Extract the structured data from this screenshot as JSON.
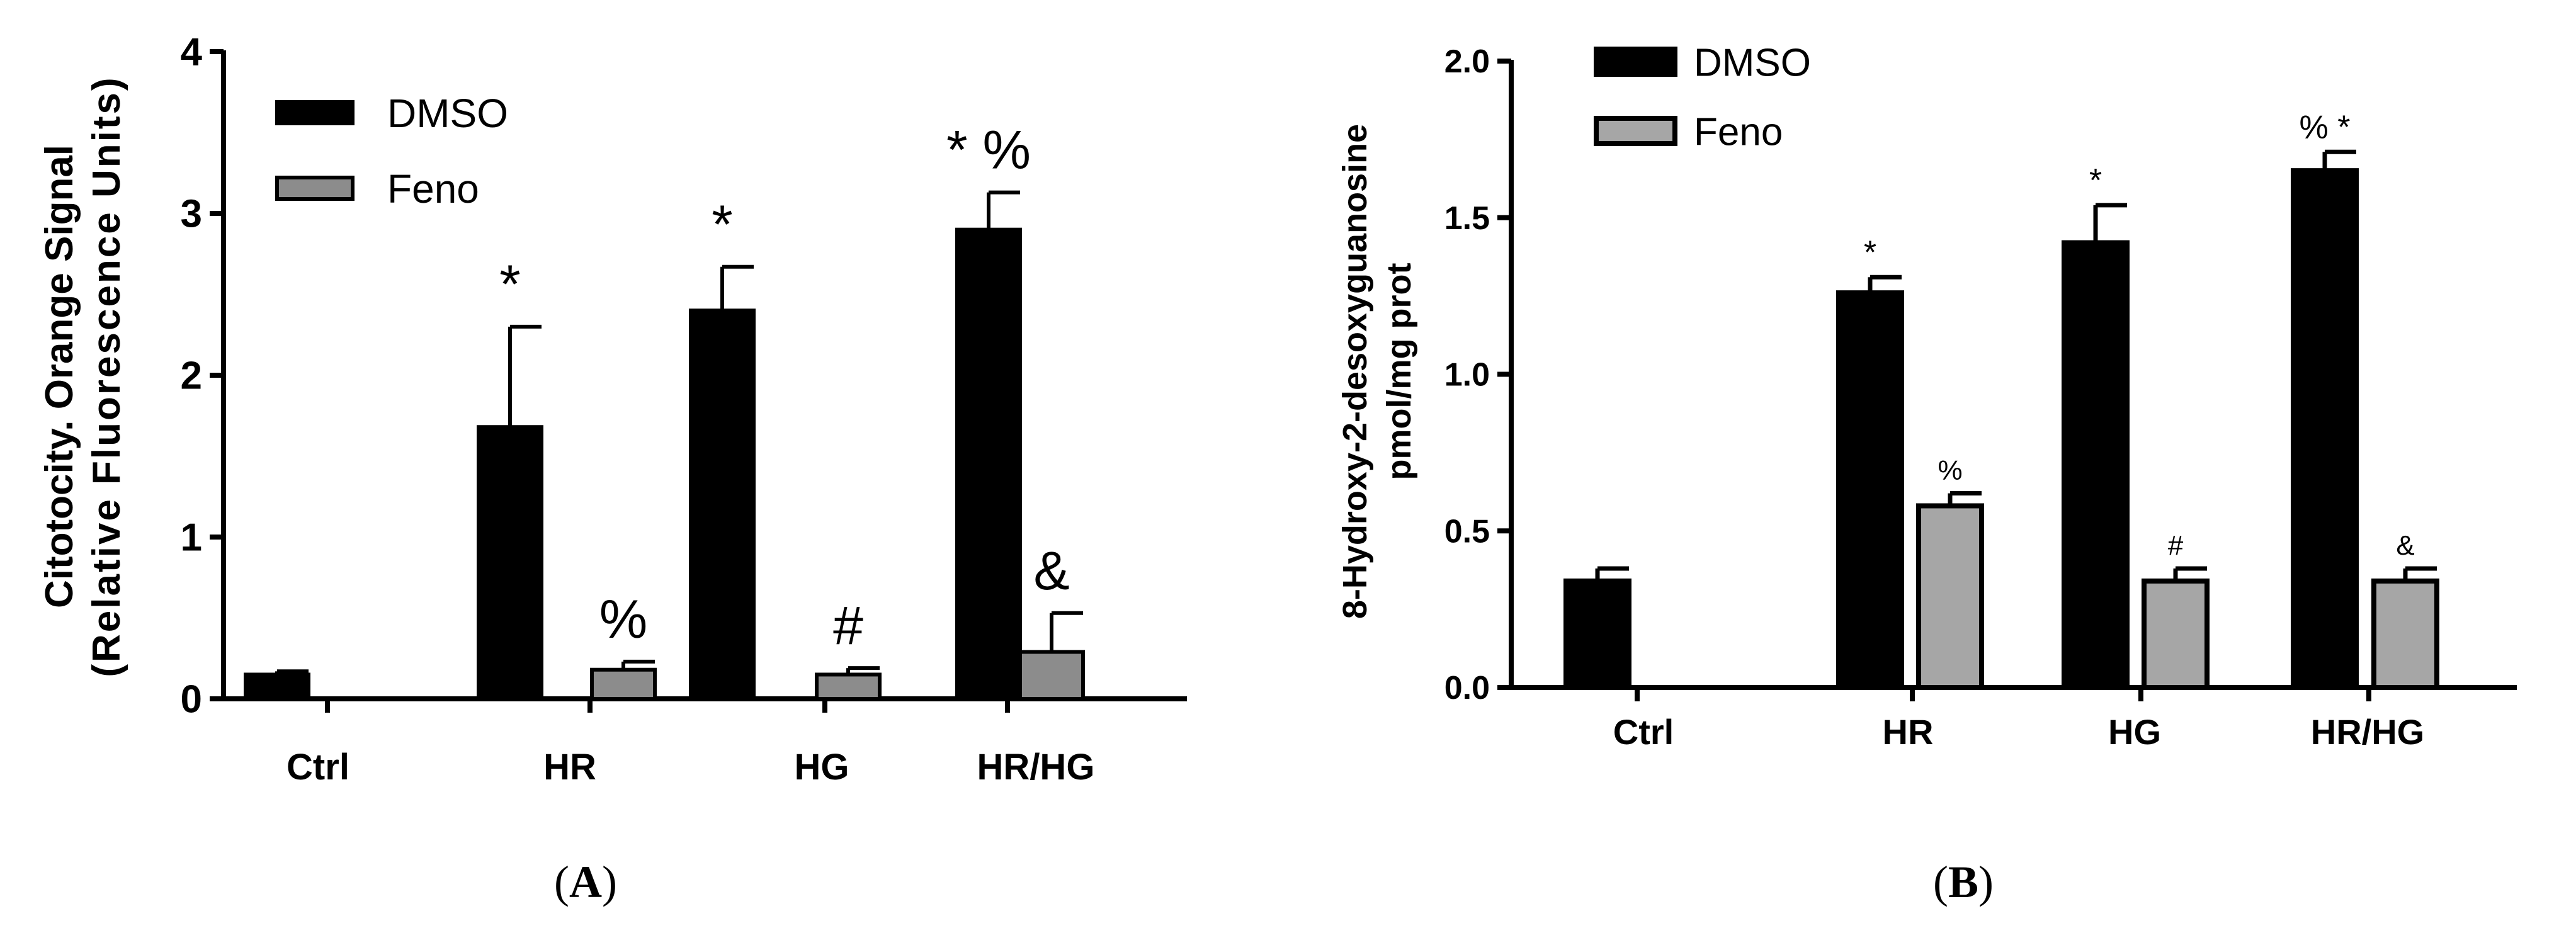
{
  "chart_data": [
    {
      "type": "bar",
      "panel_label": "(A)",
      "panel_label_parts": [
        "(",
        "A",
        ")"
      ],
      "ylabel_line1": "Citotocity. Orange Signal",
      "ylabel_line2": "(Relative Fluorescence Units)",
      "ylim": [
        0,
        4
      ],
      "yticks": [
        "0",
        "1",
        "2",
        "3",
        "4"
      ],
      "categories": [
        "Ctrl",
        "HR",
        "HG",
        "HR/HG"
      ],
      "legend": {
        "placement": "top-left",
        "entries": [
          "DMSO",
          "Feno"
        ]
      },
      "colors": {
        "DMSO": "#000000",
        "Feno": "#8c8c8c",
        "ctrl": "#8c8c8c"
      },
      "series": [
        {
          "name": "DMSO",
          "values": [
            0.15,
            1.68,
            2.4,
            2.9
          ],
          "errors": [
            0.02,
            0.62,
            0.27,
            0.23
          ],
          "annotations": [
            "",
            "*",
            "*",
            "* %"
          ]
        },
        {
          "name": "Feno",
          "values": [
            null,
            0.18,
            0.15,
            0.29
          ],
          "errors": [
            null,
            0.05,
            0.04,
            0.24
          ],
          "annotations": [
            "",
            "%",
            "#",
            "&"
          ]
        }
      ]
    },
    {
      "type": "bar",
      "panel_label": "(B)",
      "panel_label_parts": [
        "(",
        "B",
        ")"
      ],
      "ylabel_line1": "8-Hydroxy-2-desoxyguanosine",
      "ylabel_line2": "pmol/mg prot",
      "ylim": [
        0,
        2.0
      ],
      "yticks": [
        "0.0",
        "0.5",
        "1.0",
        "1.5",
        "2.0"
      ],
      "categories": [
        "Ctrl",
        "HR",
        "HG",
        "HR/HG"
      ],
      "legend": {
        "placement": "top-left",
        "entries": [
          "DMSO",
          "Feno"
        ]
      },
      "colors": {
        "DMSO": "#000000",
        "Feno": "#a6a6a6"
      },
      "series": [
        {
          "name": "DMSO",
          "values": [
            0.34,
            1.26,
            1.42,
            1.65
          ],
          "errors": [
            0.04,
            0.05,
            0.12,
            0.06
          ],
          "annotations": [
            "",
            "*",
            "*",
            "% *"
          ]
        },
        {
          "name": "Feno",
          "values": [
            null,
            0.58,
            0.34,
            0.34
          ],
          "errors": [
            null,
            0.04,
            0.04,
            0.04
          ],
          "annotations": [
            "",
            "%",
            "#",
            "&"
          ]
        }
      ]
    }
  ]
}
